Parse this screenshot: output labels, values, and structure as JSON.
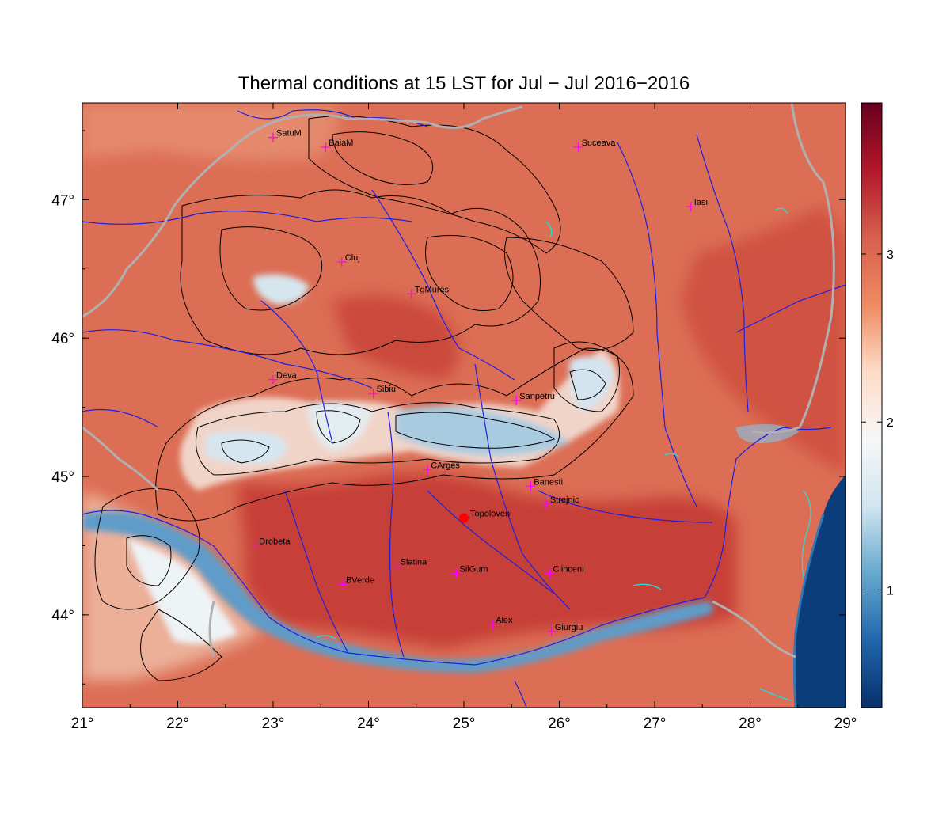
{
  "title": "Thermal conditions at 15 LST for Jul − Jul  2016−2016",
  "map": {
    "lon_range": [
      21,
      29
    ],
    "lat_range": [
      43.33,
      47.7
    ],
    "x_ticks": [
      {
        "value": 21,
        "label": "21°"
      },
      {
        "value": 22,
        "label": "22°"
      },
      {
        "value": 23,
        "label": "23°"
      },
      {
        "value": 24,
        "label": "24°"
      },
      {
        "value": 25,
        "label": "25°"
      },
      {
        "value": 26,
        "label": "26°"
      },
      {
        "value": 27,
        "label": "27°"
      },
      {
        "value": 28,
        "label": "28°"
      },
      {
        "value": 29,
        "label": "29°"
      }
    ],
    "y_ticks": [
      {
        "value": 44,
        "label": "44°"
      },
      {
        "value": 45,
        "label": "45°"
      },
      {
        "value": 46,
        "label": "46°"
      },
      {
        "value": 47,
        "label": "47°"
      }
    ],
    "colorbar": {
      "range": [
        0.3,
        3.9
      ],
      "ticks": [
        {
          "value": 1,
          "label": "1"
        },
        {
          "value": 2,
          "label": "2"
        },
        {
          "value": 3,
          "label": "3"
        }
      ],
      "colors": [
        "#08306b",
        "#2166ac",
        "#67a9cf",
        "#d1e5f0",
        "#f7f7f7",
        "#fddbc7",
        "#ef8a62",
        "#d6604d",
        "#b2182b",
        "#67001f"
      ]
    },
    "highlight_color": "#ff0000",
    "marker_color": "#ff00ff",
    "cities": [
      {
        "name": "SatuM",
        "lon": 23.0,
        "lat": 47.45
      },
      {
        "name": "BaiaM",
        "lon": 23.55,
        "lat": 47.38
      },
      {
        "name": "Suceava",
        "lon": 26.2,
        "lat": 47.38
      },
      {
        "name": "Iasi",
        "lon": 27.38,
        "lat": 46.95
      },
      {
        "name": "Cluj",
        "lon": 23.72,
        "lat": 46.55
      },
      {
        "name": "TgMures",
        "lon": 24.45,
        "lat": 46.32
      },
      {
        "name": "Deva",
        "lon": 23.0,
        "lat": 45.7
      },
      {
        "name": "Sibiu",
        "lon": 24.05,
        "lat": 45.6
      },
      {
        "name": "Sanpetru",
        "lon": 25.55,
        "lat": 45.55
      },
      {
        "name": "CArges",
        "lon": 24.62,
        "lat": 45.05
      },
      {
        "name": "Banesti",
        "lon": 25.7,
        "lat": 44.93
      },
      {
        "name": "Strejnic",
        "lon": 25.87,
        "lat": 44.8
      },
      {
        "name": "Drobeta",
        "lon": 22.82,
        "lat": 44.5
      },
      {
        "name": "Slatina",
        "lon": 24.3,
        "lat": 44.35
      },
      {
        "name": "SilGum",
        "lon": 24.92,
        "lat": 44.3
      },
      {
        "name": "Clinceni",
        "lon": 25.9,
        "lat": 44.3
      },
      {
        "name": "BVerde",
        "lon": 23.73,
        "lat": 44.22
      },
      {
        "name": "Alex",
        "lon": 25.3,
        "lat": 43.93
      },
      {
        "name": "Giurgiu",
        "lon": 25.92,
        "lat": 43.88
      }
    ],
    "highlight": {
      "name": "Topoloveni",
      "lon": 25.0,
      "lat": 44.7
    }
  }
}
